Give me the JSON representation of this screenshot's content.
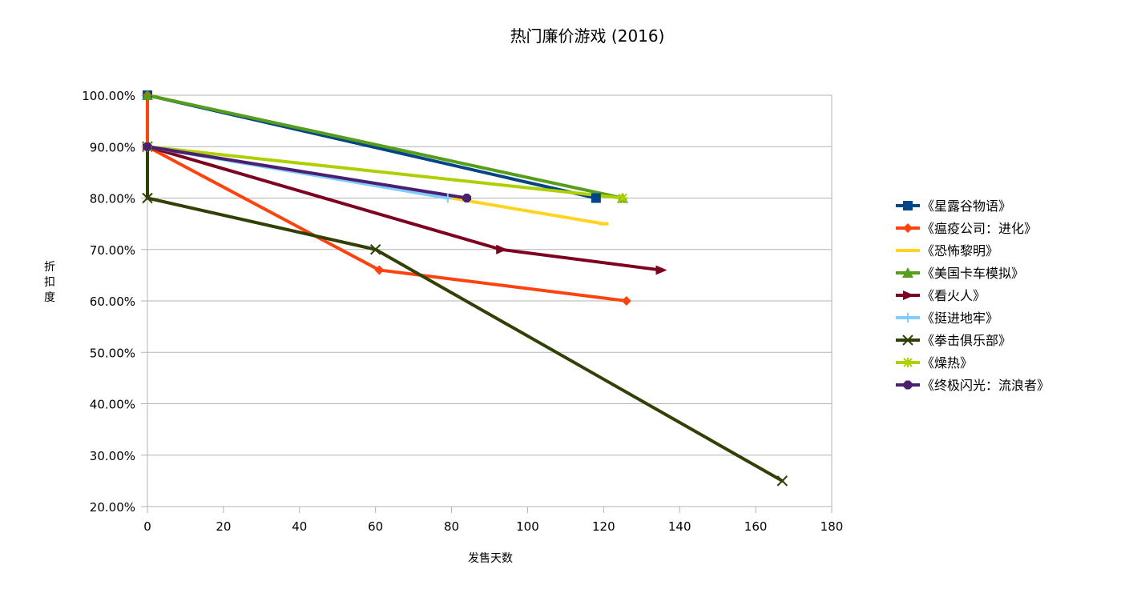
{
  "chart_data": {
    "type": "scatter",
    "title": "热门廉价游戏 (2016)",
    "xlabel": "发售天数",
    "ylabel": "折扣度",
    "xlim": [
      0,
      180
    ],
    "ylim": [
      0.2,
      1.0
    ],
    "x_ticks": [
      "0",
      "20",
      "40",
      "60",
      "80",
      "100",
      "120",
      "140",
      "160",
      "180"
    ],
    "y_ticks": [
      "20.00%",
      "30.00%",
      "40.00%",
      "50.00%",
      "60.00%",
      "70.00%",
      "80.00%",
      "90.00%",
      "100.00%"
    ],
    "grid": true,
    "legend_position": "right",
    "series": [
      {
        "name": "《星露谷物语》",
        "color": "#004586",
        "marker": "square",
        "points": [
          [
            0,
            1.0
          ],
          [
            118,
            0.8
          ]
        ]
      },
      {
        "name": "《瘟疫公司：进化》",
        "color": "#ff420e",
        "marker": "diamond",
        "points": [
          [
            0,
            1.0
          ],
          [
            0,
            0.9
          ],
          [
            61,
            0.66
          ],
          [
            126,
            0.6
          ]
        ]
      },
      {
        "name": "《恐怖黎明》",
        "color": "#ffd320",
        "marker": "dash",
        "points": [
          [
            0,
            0.9
          ],
          [
            120,
            0.75
          ]
        ]
      },
      {
        "name": "《美国卡车模拟》",
        "color": "#579d1c",
        "marker": "triangle",
        "points": [
          [
            0,
            1.0
          ],
          [
            125,
            0.8
          ]
        ]
      },
      {
        "name": "《看火人》",
        "color": "#7e0021",
        "marker": "right-triangle",
        "points": [
          [
            0,
            0.9
          ],
          [
            93,
            0.7
          ],
          [
            135,
            0.66
          ]
        ]
      },
      {
        "name": "《挺进地牢》",
        "color": "#83caff",
        "marker": "plus",
        "points": [
          [
            0,
            0.9
          ],
          [
            79,
            0.8
          ]
        ]
      },
      {
        "name": "《拳击俱乐部》",
        "color": "#314004",
        "marker": "x",
        "points": [
          [
            0,
            0.9
          ],
          [
            0,
            0.8
          ],
          [
            60,
            0.7
          ],
          [
            167,
            0.25
          ]
        ]
      },
      {
        "name": "《燥热》",
        "color": "#aecf00",
        "marker": "asterisk",
        "points": [
          [
            0,
            0.9
          ],
          [
            125,
            0.8
          ]
        ]
      },
      {
        "name": "《终极闪光：流浪者》",
        "color": "#4b1f6f",
        "marker": "octagon",
        "points": [
          [
            0,
            0.9
          ],
          [
            84,
            0.8
          ]
        ]
      }
    ]
  }
}
